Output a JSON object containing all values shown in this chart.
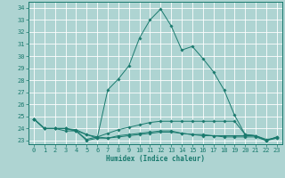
{
  "xlabel": "Humidex (Indice chaleur)",
  "xlim": [
    -0.5,
    23.5
  ],
  "ylim": [
    22.7,
    34.5
  ],
  "yticks": [
    23,
    24,
    25,
    26,
    27,
    28,
    29,
    30,
    31,
    32,
    33,
    34
  ],
  "xticks": [
    0,
    1,
    2,
    3,
    4,
    5,
    6,
    7,
    8,
    9,
    10,
    11,
    12,
    13,
    14,
    15,
    16,
    17,
    18,
    19,
    20,
    21,
    22,
    23
  ],
  "bg_color": "#aed4d2",
  "grid_color": "#ffffff",
  "line_color": "#1a7a6e",
  "lines": [
    {
      "x": [
        0,
        1,
        2,
        3,
        4,
        5,
        6,
        7,
        8,
        9,
        10,
        11,
        12,
        13,
        14,
        15,
        16,
        17,
        18,
        19,
        20,
        21,
        22,
        23
      ],
      "y": [
        24.8,
        24.0,
        24.0,
        24.0,
        23.8,
        23.0,
        23.2,
        27.2,
        28.1,
        29.2,
        31.5,
        33.0,
        33.9,
        32.5,
        30.5,
        30.8,
        29.8,
        28.7,
        27.2,
        25.1,
        23.5,
        23.4,
        23.0,
        23.3
      ]
    },
    {
      "x": [
        0,
        1,
        2,
        3,
        4,
        5,
        6,
        7,
        8,
        9,
        10,
        11,
        12,
        13,
        14,
        15,
        16,
        17,
        18,
        19,
        20,
        21,
        22,
        23
      ],
      "y": [
        24.8,
        24.0,
        24.0,
        24.0,
        23.8,
        23.1,
        23.3,
        23.6,
        23.9,
        24.1,
        24.3,
        24.5,
        24.6,
        24.6,
        24.6,
        24.6,
        24.6,
        24.6,
        24.6,
        24.6,
        23.5,
        23.4,
        23.0,
        23.3
      ]
    },
    {
      "x": [
        0,
        1,
        2,
        3,
        4,
        5,
        6,
        7,
        8,
        9,
        10,
        11,
        12,
        13,
        14,
        15,
        16,
        17,
        18,
        19,
        20,
        21,
        22,
        23
      ],
      "y": [
        24.8,
        24.0,
        24.0,
        23.8,
        23.8,
        23.5,
        23.2,
        23.2,
        23.4,
        23.5,
        23.6,
        23.7,
        23.8,
        23.8,
        23.6,
        23.5,
        23.5,
        23.4,
        23.4,
        23.4,
        23.4,
        23.4,
        23.1,
        23.2
      ]
    },
    {
      "x": [
        0,
        1,
        2,
        3,
        4,
        5,
        6,
        7,
        8,
        9,
        10,
        11,
        12,
        13,
        14,
        15,
        16,
        17,
        18,
        19,
        20,
        21,
        22,
        23
      ],
      "y": [
        24.8,
        24.0,
        24.0,
        24.0,
        23.9,
        23.5,
        23.3,
        23.2,
        23.3,
        23.4,
        23.5,
        23.6,
        23.7,
        23.7,
        23.6,
        23.5,
        23.4,
        23.4,
        23.3,
        23.3,
        23.3,
        23.3,
        23.0,
        23.2
      ]
    }
  ]
}
